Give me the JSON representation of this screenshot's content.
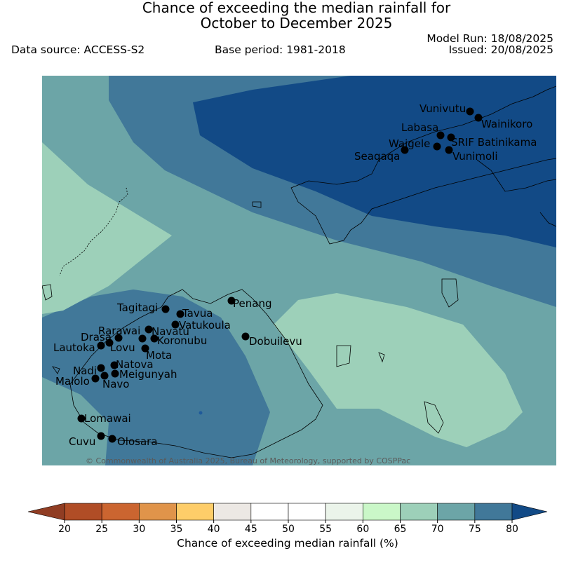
{
  "header": {
    "title_line1": "Chance of exceeding the median rainfall for",
    "title_line2": "October to December 2025",
    "model_run": "Model Run: 18/08/2025",
    "issued": "Issued: 20/08/2025",
    "data_source": "Data source: ACCESS-S2",
    "base_period": "Base period: 1981-2018"
  },
  "map": {
    "copyright": "© Commonwealth of Australia 2025, Bureau of Meteorology, supported by COSPPac",
    "places": [
      "Vunivutu",
      "Wainikoro",
      "Labasa",
      "Waigele",
      "SRIF Batinikama",
      "Seaqaqa",
      "Vunimoli",
      "Tagitagi",
      "Tavua",
      "Penang",
      "Rarawai",
      "Navatu",
      "Vatukoula",
      "Drasa",
      "Koronubu",
      "Lautoka",
      "Lovu",
      "Dobuilevu",
      "Mota",
      "Nadi",
      "Natova",
      "Meigunyah",
      "Malolo",
      "Navo",
      "Lomawai",
      "Cuvu",
      "Olosara"
    ]
  },
  "colorbar": {
    "title": "Chance of exceeding median rainfall (%)",
    "ticks": [
      "20",
      "25",
      "30",
      "35",
      "40",
      "45",
      "50",
      "55",
      "60",
      "65",
      "70",
      "75",
      "80"
    ],
    "colors": [
      "#b04d26",
      "#cb6530",
      "#e0944a",
      "#fecd69",
      "#ece8e4",
      "#ffffff",
      "#ffffff",
      "#ebf4ea",
      "#caf7c8",
      "#9dd0b9",
      "#6ca5a7",
      "#417899"
    ],
    "under_color": "#903d23",
    "over_color": "#124a86"
  }
}
